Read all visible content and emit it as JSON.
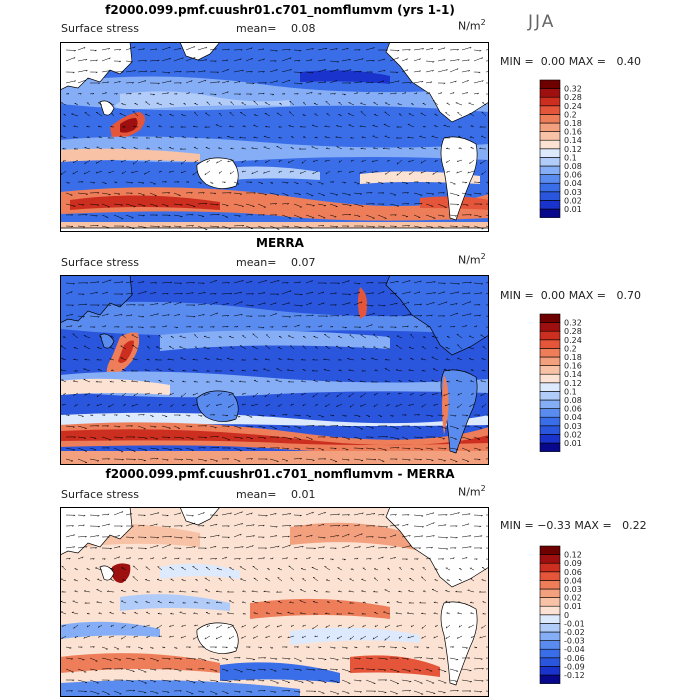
{
  "season": "JJA",
  "unit_base": "N/m",
  "unit_exp": "2",
  "panels": [
    {
      "title": "f2000.099.pmf.cuushr01.c701_nomflumvm (yrs 1-1)",
      "variable": "Surface stress",
      "mean_label": "mean=",
      "mean_value": "0.08",
      "min_label": "MIN =",
      "min_value": "0.00",
      "max_label": "MAX =",
      "max_value": "0.40"
    },
    {
      "title": "MERRA",
      "variable": "Surface stress",
      "mean_label": "mean=",
      "mean_value": "0.07",
      "min_label": "MIN =",
      "min_value": "0.00",
      "max_label": "MAX =",
      "max_value": "0.70"
    },
    {
      "title": "f2000.099.pmf.cuushr01.c701_nomflumvm - MERRA",
      "variable": "Surface stress",
      "mean_label": "mean=",
      "mean_value": "0.01",
      "min_label": "MIN =",
      "min_value": "−0.33",
      "max_label": "MAX =",
      "max_value": "0.22"
    }
  ],
  "chart_data": [
    {
      "type": "heatmap",
      "title": "f2000.099.pmf.cuushr01.c701_nomflumvm (yrs 1-1)",
      "levels": [
        0.01,
        0.02,
        0.03,
        0.04,
        0.06,
        0.08,
        0.1,
        0.12,
        0.14,
        0.16,
        0.18,
        0.2,
        0.24,
        0.28,
        0.32
      ],
      "colors": [
        "#08088c",
        "#1a33cc",
        "#2a55dd",
        "#3a6ee8",
        "#5a8cf0",
        "#86aef6",
        "#b2ccfa",
        "#dde9fd",
        "#fbe2d2",
        "#f8c2a6",
        "#f3a07e",
        "#ee7e5a",
        "#e4553a",
        "#cc2f1f",
        "#9e1010",
        "#6e0000"
      ],
      "mean": 0.08,
      "min": 0.0,
      "max": 0.4
    },
    {
      "type": "heatmap",
      "title": "MERRA",
      "levels": [
        0.01,
        0.02,
        0.03,
        0.04,
        0.06,
        0.08,
        0.1,
        0.12,
        0.14,
        0.16,
        0.18,
        0.2,
        0.24,
        0.28,
        0.32
      ],
      "colors": [
        "#08088c",
        "#1a33cc",
        "#2a55dd",
        "#3a6ee8",
        "#5a8cf0",
        "#86aef6",
        "#b2ccfa",
        "#dde9fd",
        "#fbe2d2",
        "#f8c2a6",
        "#f3a07e",
        "#ee7e5a",
        "#e4553a",
        "#cc2f1f",
        "#9e1010",
        "#6e0000"
      ],
      "mean": 0.07,
      "min": 0.0,
      "max": 0.7
    },
    {
      "type": "heatmap",
      "title": "f2000.099.pmf.cuushr01.c701_nomflumvm - MERRA",
      "levels": [
        -0.12,
        -0.09,
        -0.06,
        -0.04,
        -0.03,
        -0.02,
        -0.01,
        0,
        0.01,
        0.02,
        0.03,
        0.04,
        0.06,
        0.09,
        0.12
      ],
      "colors": [
        "#08088c",
        "#1a33cc",
        "#2a55dd",
        "#3a6ee8",
        "#5a8cf0",
        "#86aef6",
        "#b2ccfa",
        "#dde9fd",
        "#fbe2d2",
        "#f8c2a6",
        "#f3a07e",
        "#ee7e5a",
        "#e4553a",
        "#cc2f1f",
        "#9e1010",
        "#6e0000"
      ],
      "mean": 0.01,
      "min": -0.33,
      "max": 0.22
    }
  ]
}
